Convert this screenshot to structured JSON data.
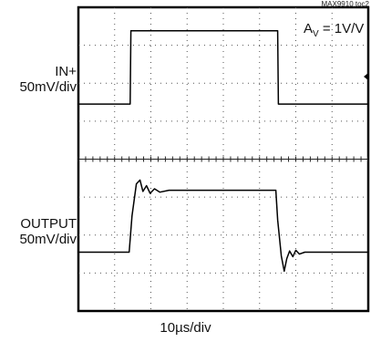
{
  "figure_id": "MAX9910 toc2",
  "annotation": {
    "prefix": "A",
    "sub": "V",
    "suffix": " = 1V/V"
  },
  "channels": [
    {
      "label": "IN+",
      "scale": "50mV/div"
    },
    {
      "label": "OUTPUT",
      "scale": "50mV/div"
    }
  ],
  "x_scale": "10µs/div",
  "chart_data": {
    "type": "line",
    "title": "",
    "xlabel": "10µs/div",
    "ylabel": "",
    "grid": true,
    "x_divisions": 8,
    "y_divisions": 8,
    "series": [
      {
        "name": "IN+",
        "points_div": [
          [
            0,
            1.45
          ],
          [
            1.43,
            1.45
          ],
          [
            1.45,
            3.38
          ],
          [
            5.5,
            3.38
          ],
          [
            5.52,
            1.45
          ],
          [
            8,
            1.45
          ]
        ]
      },
      {
        "name": "OUTPUT",
        "points_div": [
          [
            0,
            -2.45
          ],
          [
            1.4,
            -2.45
          ],
          [
            1.48,
            -1.5
          ],
          [
            1.6,
            -0.65
          ],
          [
            1.7,
            -0.55
          ],
          [
            1.78,
            -0.85
          ],
          [
            1.88,
            -0.7
          ],
          [
            1.98,
            -0.9
          ],
          [
            2.1,
            -0.78
          ],
          [
            2.25,
            -0.87
          ],
          [
            2.5,
            -0.82
          ],
          [
            5.45,
            -0.82
          ],
          [
            5.5,
            -1.6
          ],
          [
            5.6,
            -2.55
          ],
          [
            5.68,
            -2.95
          ],
          [
            5.75,
            -2.62
          ],
          [
            5.83,
            -2.42
          ],
          [
            5.92,
            -2.57
          ],
          [
            6.0,
            -2.4
          ],
          [
            6.1,
            -2.5
          ],
          [
            6.25,
            -2.45
          ],
          [
            8,
            -2.45
          ]
        ]
      }
    ]
  }
}
